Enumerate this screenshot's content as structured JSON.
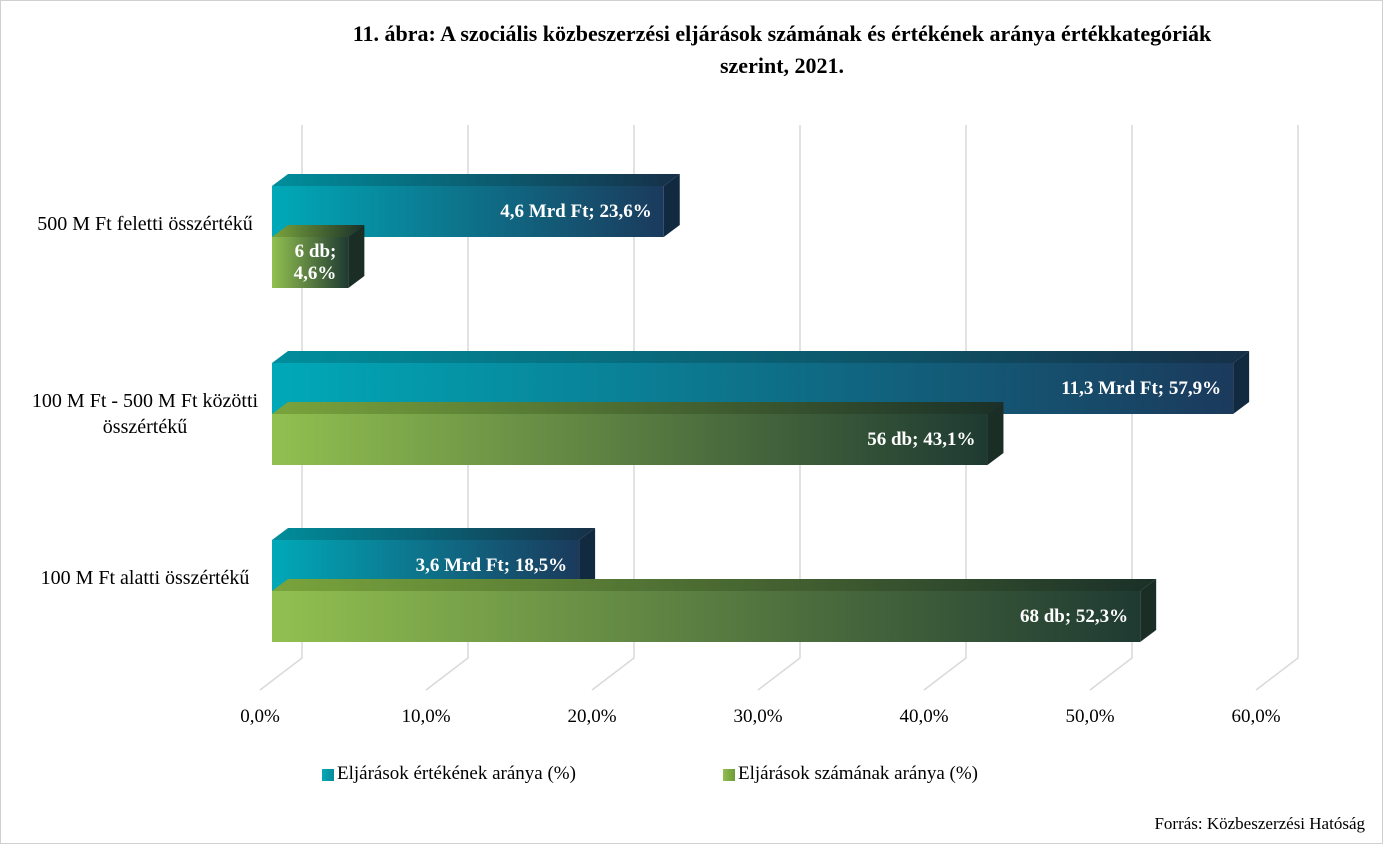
{
  "chart_data": {
    "type": "bar3d_horizontal",
    "title": "11. ábra: A szociális közbeszerzési eljárások számának és értékének aránya értékkategóriák szerint, 2021.",
    "categories": [
      "500 M Ft feletti összértékű",
      "100 M Ft - 500 M Ft közötti összértékű",
      "100 M Ft alatti összértékű"
    ],
    "series": [
      {
        "name": "Eljárások értékének aránya (%)",
        "color": "#00a9b8",
        "values": [
          23.6,
          57.9,
          18.5
        ],
        "value_labels": [
          "4,6 Mrd Ft; 23,6%",
          "11,3 Mrd Ft; 57,9%",
          "3,6 Mrd Ft; 18,5%"
        ]
      },
      {
        "name": "Eljárások számának aránya (%)",
        "color": "#92c050",
        "values": [
          4.6,
          43.1,
          52.3
        ],
        "value_labels": [
          "6 db; 4,6%",
          "56 db; 43,1%",
          "68 db; 52,3%"
        ]
      }
    ],
    "xlim": [
      0,
      60
    ],
    "xticks": [
      {
        "value": 0,
        "label": "0,0%"
      },
      {
        "value": 10,
        "label": "10,0%"
      },
      {
        "value": 20,
        "label": "20,0%"
      },
      {
        "value": 30,
        "label": "30,0%"
      },
      {
        "value": 40,
        "label": "40,0%"
      },
      {
        "value": 50,
        "label": "50,0%"
      },
      {
        "value": 60,
        "label": "60,0%"
      }
    ],
    "grid": true,
    "source": "Forrás: Közbeszerzési Hatóság"
  }
}
